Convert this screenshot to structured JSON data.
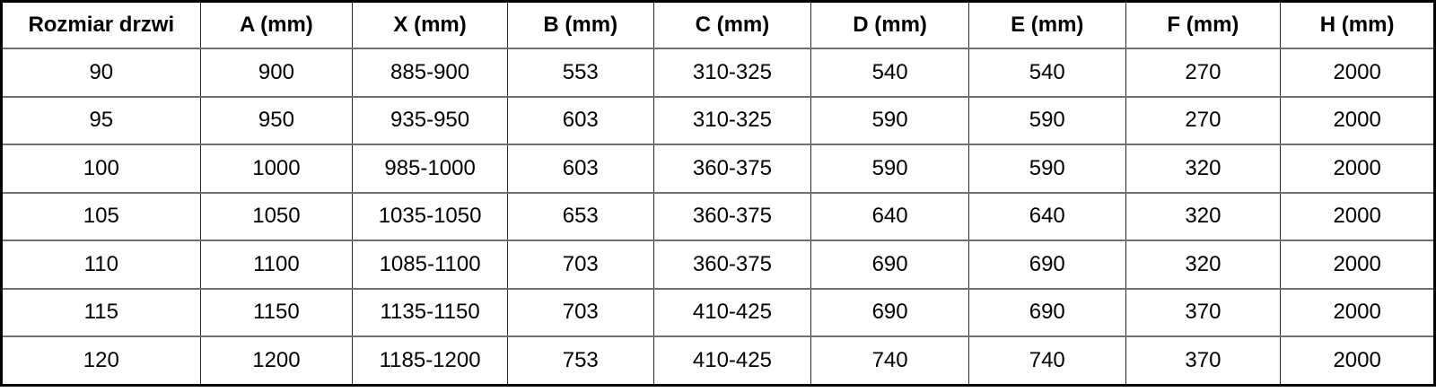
{
  "table": {
    "name": "door-dimensions-table",
    "columns": [
      "Rozmiar drzwi",
      "A (mm)",
      "X (mm)",
      "B (mm)",
      "C (mm)",
      "D (mm)",
      "E (mm)",
      "F (mm)",
      "H (mm)"
    ],
    "rows": [
      [
        "90",
        "900",
        "885-900",
        "553",
        "310-325",
        "540",
        "540",
        "270",
        "2000"
      ],
      [
        "95",
        "950",
        "935-950",
        "603",
        "310-325",
        "590",
        "590",
        "270",
        "2000"
      ],
      [
        "100",
        "1000",
        "985-1000",
        "603",
        "360-375",
        "590",
        "590",
        "320",
        "2000"
      ],
      [
        "105",
        "1050",
        "1035-1050",
        "653",
        "360-375",
        "640",
        "640",
        "320",
        "2000"
      ],
      [
        "110",
        "1100",
        "1085-1100",
        "703",
        "360-375",
        "690",
        "690",
        "320",
        "2000"
      ],
      [
        "115",
        "1150",
        "1135-1150",
        "703",
        "410-425",
        "690",
        "690",
        "370",
        "2000"
      ],
      [
        "120",
        "1200",
        "1185-1200",
        "753",
        "410-425",
        "740",
        "740",
        "370",
        "2000"
      ]
    ],
    "column_width_percents": [
      13.875,
      10.625,
      10.8125,
      10.1875,
      11.0,
      11.0,
      10.9375,
      10.8125,
      10.75
    ]
  },
  "colors": {
    "background": "#ffffff",
    "text": "#000000",
    "outer_border": "#000000",
    "vertical_rule": "#262626",
    "horizontal_rule": "#707070"
  }
}
